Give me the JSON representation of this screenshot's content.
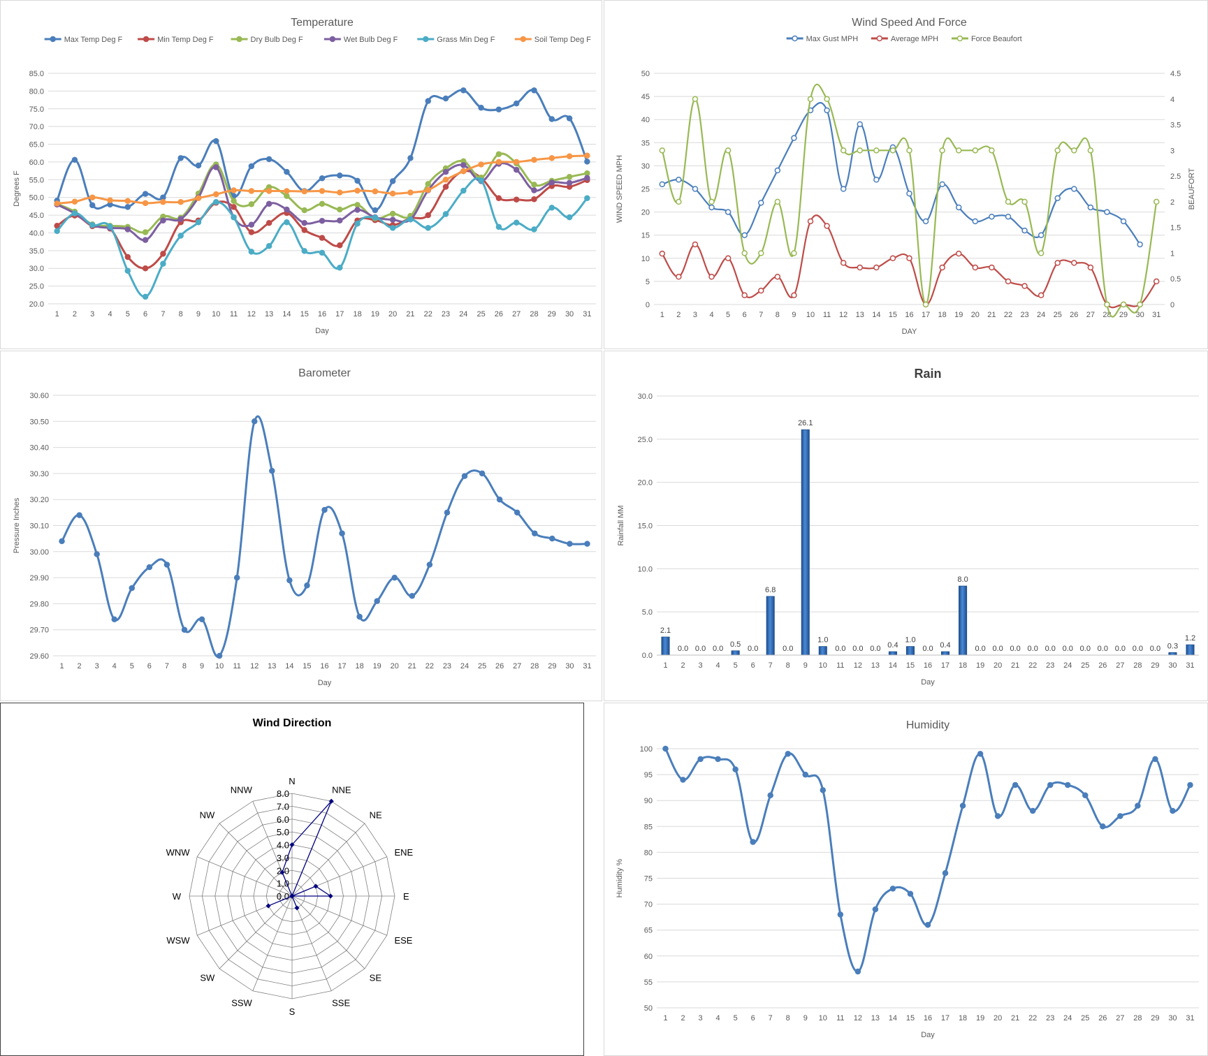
{
  "chart_data": [
    {
      "type": "line",
      "title": "Temperature",
      "xlabel": "Day",
      "ylabel": "Degrees F",
      "x": [
        1,
        2,
        3,
        4,
        5,
        6,
        7,
        8,
        9,
        10,
        11,
        12,
        13,
        14,
        15,
        16,
        17,
        18,
        19,
        20,
        21,
        22,
        23,
        24,
        25,
        26,
        27,
        28,
        29,
        30,
        31
      ],
      "y_ticks": [
        "20.0",
        "25.0",
        "30.0",
        "35.0",
        "40.0",
        "45.0",
        "50.0",
        "55.0",
        "60.0",
        "65.0",
        "70.0",
        "75.0",
        "80.0",
        "85.0"
      ],
      "ylim": [
        20,
        85
      ],
      "grid": true,
      "legend": "top",
      "smooth": true,
      "series": [
        {
          "name": "Max Temp Deg F",
          "color": "#4a7ebb",
          "values": [
            49.1,
            60.6,
            47.8,
            48.0,
            47.3,
            51.0,
            50.0,
            61.1,
            59.0,
            65.9,
            50.4,
            58.8,
            60.8,
            57.2,
            51.8,
            55.4,
            56.2,
            54.7,
            46.4,
            54.6,
            61.1,
            77.2,
            77.9,
            80.2,
            75.3,
            74.8,
            76.5,
            80.2,
            72.1,
            72.3,
            60.1
          ]
        },
        {
          "name": "Min Temp Deg F",
          "color": "#be4b48",
          "values": [
            42.0,
            44.9,
            41.9,
            41.2,
            33.2,
            30.0,
            34.1,
            43.0,
            43.5,
            48.5,
            47.3,
            40.2,
            42.8,
            45.6,
            40.8,
            38.6,
            36.5,
            43.5,
            43.6,
            42.2,
            44.1,
            45.0,
            53.0,
            57.4,
            55.5,
            49.8,
            49.4,
            49.5,
            53.2,
            53.0,
            54.9
          ]
        },
        {
          "name": "Dry Bulb Deg F",
          "color": "#98b954",
          "values": [
            48.2,
            46.0,
            42.4,
            42.0,
            41.7,
            40.2,
            44.6,
            44.3,
            51.1,
            59.3,
            49.0,
            48.1,
            52.9,
            50.4,
            46.4,
            48.2,
            46.6,
            47.9,
            44.1,
            45.4,
            44.8,
            53.8,
            58.2,
            60.2,
            55.6,
            62.2,
            59.6,
            53.6,
            54.7,
            55.8,
            56.8
          ]
        },
        {
          "name": "Wet Bulb Deg F",
          "color": "#7d5fa0",
          "values": [
            48.0,
            45.5,
            42.2,
            41.4,
            41.0,
            38.0,
            43.5,
            43.9,
            50.0,
            58.5,
            44.4,
            42.3,
            48.2,
            46.6,
            42.8,
            43.4,
            43.5,
            46.5,
            44.4,
            43.7,
            43.8,
            52.0,
            57.2,
            59.1,
            54.6,
            59.5,
            57.8,
            52.0,
            54.2,
            54.1,
            55.5
          ]
        },
        {
          "name": "Grass Min Deg F",
          "color": "#4bacc6",
          "values": [
            40.5,
            45.5,
            42.2,
            41.8,
            29.3,
            22.0,
            31.3,
            39.2,
            43.0,
            48.7,
            44.4,
            34.7,
            36.3,
            43.0,
            34.9,
            34.4,
            30.2,
            42.6,
            44.3,
            41.4,
            43.8,
            41.4,
            45.3,
            51.9,
            54.8,
            41.7,
            42.9,
            41.0,
            47.1,
            44.4,
            49.8
          ]
        },
        {
          "name": "Soil Temp Deg F",
          "color": "#f79646",
          "values": [
            48.3,
            48.8,
            50.0,
            49.2,
            49.0,
            48.4,
            48.7,
            48.7,
            49.8,
            50.9,
            52.0,
            51.8,
            51.8,
            51.8,
            51.7,
            51.8,
            51.4,
            51.9,
            51.7,
            51.1,
            51.4,
            52.1,
            55.0,
            57.4,
            59.3,
            60.0,
            60.0,
            60.6,
            61.1,
            61.6,
            61.8
          ]
        }
      ]
    },
    {
      "type": "line",
      "title": "Wind Speed And Force",
      "xlabel": "DAY",
      "ylabel": "WIND SPEED MPH",
      "y2label": "BEAUFORT",
      "x": [
        1,
        2,
        3,
        4,
        5,
        6,
        7,
        8,
        9,
        10,
        11,
        12,
        13,
        14,
        15,
        16,
        17,
        18,
        19,
        20,
        21,
        22,
        23,
        24,
        25,
        26,
        27,
        28,
        29,
        30,
        31
      ],
      "y_ticks": [
        "0",
        "5",
        "10",
        "15",
        "20",
        "25",
        "30",
        "35",
        "40",
        "45",
        "50"
      ],
      "y2_ticks": [
        "0",
        "0.5",
        "1",
        "1.5",
        "2",
        "2.5",
        "3",
        "3.5",
        "4",
        "4.5"
      ],
      "ylim": [
        0,
        50
      ],
      "y2lim": [
        0,
        4.5
      ],
      "grid": true,
      "legend": "top",
      "smooth": true,
      "series": [
        {
          "name": "Max Gust MPH",
          "axis": "left",
          "color": "#4a7ebb",
          "values": [
            26,
            27,
            25,
            21,
            20,
            15,
            22,
            29,
            36,
            42,
            42,
            25,
            39,
            27,
            34,
            24,
            18,
            26,
            21,
            18,
            19,
            19,
            16,
            15,
            23,
            25,
            21,
            20,
            18,
            13,
            null
          ]
        },
        {
          "name": "Average MPH",
          "axis": "left",
          "color": "#be4b48",
          "values": [
            11,
            6,
            13,
            6,
            10,
            2,
            3,
            6,
            2,
            18,
            17,
            9,
            8,
            8,
            10,
            10,
            0,
            8,
            11,
            8,
            8,
            5,
            4,
            2,
            9,
            9,
            8,
            0,
            0,
            0,
            5
          ]
        },
        {
          "name": "Force Beaufort",
          "axis": "right",
          "color": "#98b954",
          "values": [
            3,
            2,
            4,
            2,
            3,
            1,
            1,
            2,
            1,
            4,
            4,
            3,
            3,
            3,
            3,
            3,
            0,
            3,
            3,
            3,
            3,
            2,
            2,
            1,
            3,
            3,
            3,
            0,
            0,
            0,
            2
          ]
        }
      ]
    },
    {
      "type": "line",
      "title": "Barometer",
      "xlabel": "Day",
      "ylabel": "Pressure Inches",
      "x": [
        1,
        2,
        3,
        4,
        5,
        6,
        7,
        8,
        9,
        10,
        11,
        12,
        13,
        14,
        15,
        16,
        17,
        18,
        19,
        20,
        21,
        22,
        23,
        24,
        25,
        26,
        27,
        28,
        29,
        30,
        31
      ],
      "y_ticks": [
        "29.60",
        "29.70",
        "29.80",
        "29.90",
        "30.00",
        "30.10",
        "30.20",
        "30.30",
        "30.40",
        "30.50",
        "30.60"
      ],
      "ylim": [
        29.6,
        30.6
      ],
      "grid": true,
      "smooth": true,
      "series": [
        {
          "color": "#4a7ebb",
          "values": [
            30.04,
            30.14,
            29.99,
            29.74,
            29.86,
            29.94,
            29.95,
            29.7,
            29.74,
            29.6,
            29.9,
            30.5,
            30.31,
            29.89,
            29.87,
            30.16,
            30.07,
            29.75,
            29.81,
            29.9,
            29.83,
            29.95,
            30.15,
            30.29,
            30.3,
            30.2,
            30.15,
            30.07,
            30.05,
            30.03,
            30.03
          ]
        }
      ]
    },
    {
      "type": "bar",
      "title": "Rain",
      "xlabel": "Day",
      "ylabel": "Rainfall MM",
      "categories": [
        "1",
        "2",
        "3",
        "4",
        "5",
        "6",
        "7",
        "8",
        "9",
        "10",
        "11",
        "12",
        "13",
        "14",
        "15",
        "16",
        "17",
        "18",
        "19",
        "20",
        "21",
        "22",
        "23",
        "24",
        "25",
        "26",
        "27",
        "28",
        "29",
        "30",
        "31"
      ],
      "values": [
        2.1,
        0.0,
        0.0,
        0.0,
        0.5,
        0.0,
        6.8,
        0.0,
        26.1,
        1.0,
        0.0,
        0.0,
        0.0,
        0.4,
        1.0,
        0.0,
        0.4,
        8.0,
        0.0,
        0.0,
        0.0,
        0.0,
        0.0,
        0.0,
        0.0,
        0.0,
        0.0,
        0.0,
        0.0,
        0.3,
        1.2
      ],
      "data_labels": [
        "2.1",
        "0.0",
        "0.0",
        "0.0",
        "0.5",
        "0.0",
        "6.8",
        "0.0",
        "26.1",
        "1.0",
        "0.0",
        "0.0",
        "0.0",
        "0.4",
        "1.0",
        "0.0",
        "0.4",
        "8.0",
        "0.0",
        "0.0",
        "0.0",
        "0.0",
        "0.0",
        "0.0",
        "0.0",
        "0.0",
        "0.0",
        "0.0",
        "0.0",
        "0.3",
        "1.2"
      ],
      "y_ticks": [
        "0.0",
        "5.0",
        "10.0",
        "15.0",
        "20.0",
        "25.0",
        "30.0"
      ],
      "ylim": [
        0,
        30
      ],
      "grid": true,
      "color": "#3a74c4"
    },
    {
      "type": "radar",
      "title": "Wind Direction",
      "categories": [
        "N",
        "NNE",
        "NE",
        "ENE",
        "E",
        "ESE",
        "SE",
        "SSE",
        "S",
        "SSW",
        "SW",
        "WSW",
        "W",
        "WNW",
        "NW",
        "NNW"
      ],
      "values": [
        4.0,
        8.0,
        0.0,
        2.0,
        3.0,
        0.0,
        0.0,
        1.0,
        0.0,
        0.0,
        0.0,
        2.0,
        0.0,
        0.0,
        0.0,
        2.0
      ],
      "r_ticks": [
        "0.0",
        "1.0",
        "2.0",
        "3.0",
        "4.0",
        "5.0",
        "6.0",
        "7.0",
        "8.0"
      ],
      "rlim": [
        0,
        8
      ],
      "grid": true,
      "color": "#000080"
    },
    {
      "type": "line",
      "title": "Humidity",
      "xlabel": "Day",
      "ylabel": "Humidity %",
      "x": [
        1,
        2,
        3,
        4,
        5,
        6,
        7,
        8,
        9,
        10,
        11,
        12,
        13,
        14,
        15,
        16,
        17,
        18,
        19,
        20,
        21,
        22,
        23,
        24,
        25,
        26,
        27,
        28,
        29,
        30,
        31
      ],
      "y_ticks": [
        "50",
        "55",
        "60",
        "65",
        "70",
        "75",
        "80",
        "85",
        "90",
        "95",
        "100"
      ],
      "ylim": [
        50,
        100
      ],
      "grid": true,
      "smooth": true,
      "series": [
        {
          "color": "#4a7ebb",
          "values": [
            100,
            94,
            98,
            98,
            96,
            82,
            91,
            99,
            95,
            92,
            68,
            57,
            69,
            73,
            72,
            66,
            76,
            89,
            99,
            87,
            93,
            88,
            93,
            93,
            91,
            85,
            87,
            89,
            98,
            88,
            93
          ]
        }
      ]
    }
  ]
}
